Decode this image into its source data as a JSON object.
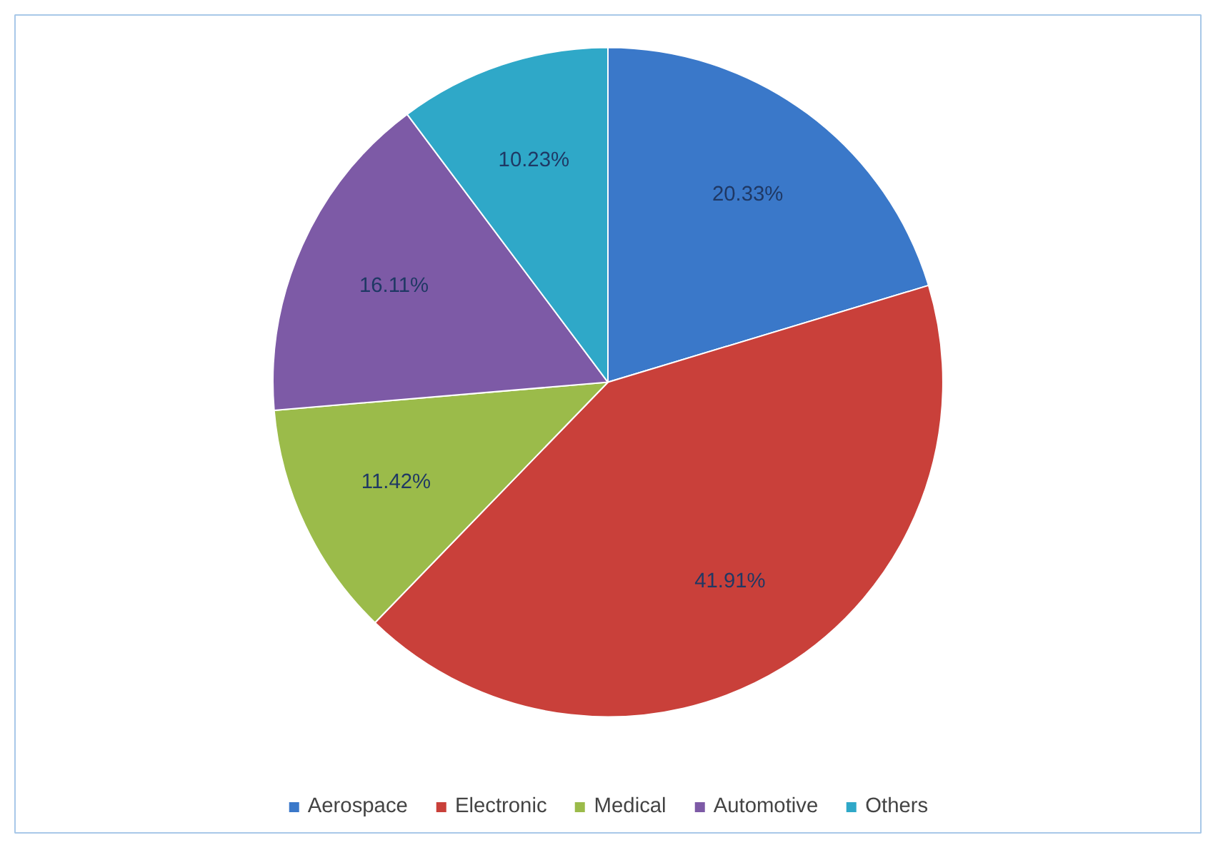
{
  "chart_data": {
    "type": "pie",
    "categories": [
      "Aerospace",
      "Electronic",
      "Medical",
      "Automotive",
      "Others"
    ],
    "values": [
      20.33,
      41.91,
      11.42,
      16.11,
      10.23
    ],
    "colors": [
      "#3a78c9",
      "#c9403a",
      "#9bbb4a",
      "#7d5aa6",
      "#2fa8c8"
    ],
    "value_labels": [
      "20.33%",
      "41.91%",
      "11.42%",
      "16.11%",
      "10.23%"
    ],
    "legend": "bottom"
  }
}
